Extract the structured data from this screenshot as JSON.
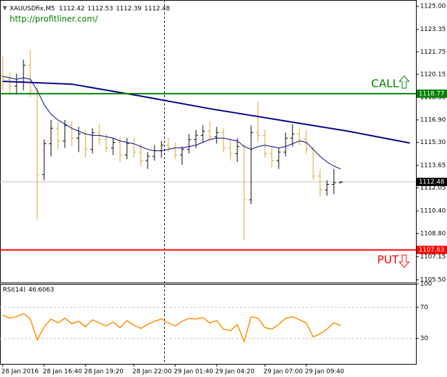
{
  "chart_data": {
    "type": "ohlc",
    "symbol": "XAUUSDfix,M5",
    "header_ohlc": [
      1112.42,
      1112.53,
      1112.39,
      1112.48
    ],
    "watermark": "http://profitliner.com/",
    "up_color": "#000000",
    "down_color": "#daa520",
    "ohlc": [
      [
        1120.0,
        1121.4,
        1119.0,
        1119.8
      ],
      [
        1119.8,
        1120.3,
        1118.8,
        1119.3
      ],
      [
        1119.3,
        1120.2,
        1118.7,
        1119.6
      ],
      [
        1119.6,
        1121.2,
        1119.0,
        1120.8
      ],
      [
        1120.8,
        1121.9,
        1118.5,
        1119.0
      ],
      [
        1119.0,
        1119.2,
        1109.8,
        1113.0
      ],
      [
        1113.0,
        1115.5,
        1112.6,
        1115.2
      ],
      [
        1115.2,
        1116.9,
        1114.3,
        1116.3
      ],
      [
        1116.3,
        1116.8,
        1114.8,
        1115.4
      ],
      [
        1115.4,
        1116.9,
        1114.9,
        1116.5
      ],
      [
        1116.5,
        1116.8,
        1115.0,
        1115.6
      ],
      [
        1115.6,
        1116.4,
        1114.6,
        1115.9
      ],
      [
        1115.9,
        1116.2,
        1114.2,
        1114.8
      ],
      [
        1114.8,
        1116.3,
        1114.5,
        1116.0
      ],
      [
        1116.0,
        1116.6,
        1115.1,
        1115.5
      ],
      [
        1115.5,
        1115.9,
        1114.6,
        1114.9
      ],
      [
        1114.9,
        1115.6,
        1114.4,
        1115.3
      ],
      [
        1115.3,
        1115.7,
        1113.9,
        1114.4
      ],
      [
        1114.4,
        1115.6,
        1114.1,
        1115.2
      ],
      [
        1115.2,
        1115.6,
        1114.2,
        1114.6
      ],
      [
        1114.6,
        1115.2,
        1113.6,
        1114.0
      ],
      [
        1114.0,
        1114.6,
        1113.4,
        1114.3
      ],
      [
        1114.3,
        1115.1,
        1114.0,
        1114.7
      ],
      [
        1114.7,
        1115.4,
        1114.2,
        1115.1
      ],
      [
        1115.1,
        1115.6,
        1114.6,
        1114.9
      ],
      [
        1114.9,
        1115.3,
        1114.1,
        1114.4
      ],
      [
        1114.4,
        1115.0,
        1113.7,
        1114.8
      ],
      [
        1114.8,
        1115.9,
        1114.5,
        1115.5
      ],
      [
        1115.5,
        1116.2,
        1114.9,
        1115.8
      ],
      [
        1115.8,
        1116.5,
        1115.3,
        1116.1
      ],
      [
        1116.1,
        1116.8,
        1115.4,
        1115.7
      ],
      [
        1115.7,
        1116.4,
        1115.2,
        1116.0
      ],
      [
        1116.0,
        1116.3,
        1114.6,
        1114.9
      ],
      [
        1114.9,
        1115.5,
        1114.0,
        1114.5
      ],
      [
        1114.5,
        1115.6,
        1113.9,
        1115.0
      ],
      [
        1115.0,
        1115.2,
        1108.3,
        1111.2
      ],
      [
        1111.2,
        1116.5,
        1110.9,
        1116.0
      ],
      [
        1116.0,
        1118.2,
        1115.3,
        1115.8
      ],
      [
        1115.8,
        1116.2,
        1114.2,
        1114.5
      ],
      [
        1114.5,
        1115.0,
        1113.5,
        1114.0
      ],
      [
        1114.0,
        1114.9,
        1113.4,
        1114.6
      ],
      [
        1114.6,
        1116.0,
        1114.3,
        1115.6
      ],
      [
        1115.6,
        1116.6,
        1115.0,
        1115.9
      ],
      [
        1115.9,
        1116.3,
        1115.1,
        1115.5
      ],
      [
        1115.5,
        1116.2,
        1114.5,
        1114.8
      ],
      [
        1114.8,
        1115.0,
        1112.6,
        1112.9
      ],
      [
        1112.9,
        1113.4,
        1111.4,
        1111.9
      ],
      [
        1111.9,
        1112.6,
        1111.5,
        1112.3
      ],
      [
        1112.3,
        1113.4,
        1111.6,
        1112.42
      ],
      [
        1112.42,
        1112.53,
        1112.39,
        1112.48
      ]
    ],
    "fast_ma": {
      "color": "#00008b",
      "values": [
        1120.0,
        1119.9,
        1119.8,
        1119.9,
        1119.8,
        1119.0,
        1118.0,
        1117.3,
        1116.9,
        1116.6,
        1116.3,
        1116.1,
        1115.9,
        1115.8,
        1115.8,
        1115.7,
        1115.6,
        1115.4,
        1115.3,
        1115.2,
        1115.0,
        1114.8,
        1114.7,
        1114.7,
        1114.8,
        1114.9,
        1114.9,
        1115.0,
        1115.1,
        1115.3,
        1115.5,
        1115.6,
        1115.6,
        1115.5,
        1115.4,
        1115.0,
        1114.8,
        1115.0,
        1115.1,
        1115.0,
        1114.9,
        1115.0,
        1115.2,
        1115.4,
        1115.3,
        1114.8,
        1114.3,
        1113.9,
        1113.6,
        1113.4
      ]
    },
    "slow_ma": {
      "color": "#00008b",
      "x": [
        0,
        10,
        20,
        30,
        40,
        50,
        59
      ],
      "values": [
        1119.65,
        1119.45,
        1118.6,
        1117.7,
        1116.9,
        1116.1,
        1115.25
      ]
    },
    "levels": [
      {
        "name": "CALL",
        "value": 1118.77,
        "color": "#008000"
      },
      {
        "name": "PUT",
        "value": 1107.63,
        "color": "#ff0000"
      }
    ],
    "last_price": 1112.48,
    "xlim": [
      -0.4,
      59.9
    ],
    "ylim": [
      1105.3,
      1125.4
    ],
    "yticks": [
      {
        "value": 1125.0,
        "label": "1125.00"
      },
      {
        "value": 1123.35,
        "label": "1123.35"
      },
      {
        "value": 1121.75,
        "label": "1121.75"
      },
      {
        "value": 1120.15,
        "label": "1120.15"
      },
      {
        "value": 1118.5,
        "label": "1118.50"
      },
      {
        "value": 1116.9,
        "label": "1116.90"
      },
      {
        "value": 1115.3,
        "label": "1115.30"
      },
      {
        "value": 1113.65,
        "label": "1113.65"
      },
      {
        "value": 1112.05,
        "label": "1112.05"
      },
      {
        "value": 1110.4,
        "label": "1110.40"
      },
      {
        "value": 1108.8,
        "label": "1108.80"
      },
      {
        "value": 1107.15,
        "label": "1107.15"
      },
      {
        "value": 1105.5,
        "label": "1105.50"
      }
    ],
    "xticks": [
      {
        "value": 0,
        "label": "28 Jan 2016"
      },
      {
        "value": 6,
        "label": "28 Jan 16:40"
      },
      {
        "value": 12,
        "label": "28 Jan 19:20"
      },
      {
        "value": 19,
        "label": "28 Jan 22:00"
      },
      {
        "value": 25,
        "label": "29 Jan 01:40"
      },
      {
        "value": 31,
        "label": "29 Jan 04:20"
      },
      {
        "value": 38,
        "label": "29 Jan 07:00"
      },
      {
        "value": 44,
        "label": "29 Jan 09:40"
      }
    ],
    "rsi": {
      "label": "RSI(14)",
      "value": 46.6063,
      "color": "#ff8c00",
      "ylim": [
        0,
        100
      ],
      "yticks": [
        30,
        70,
        100
      ],
      "values": [
        60,
        56,
        58,
        62,
        55,
        28,
        45,
        55,
        50,
        56,
        49,
        52,
        45,
        54,
        50,
        46,
        51,
        44,
        53,
        47,
        43,
        48,
        52,
        55,
        50,
        46,
        52,
        56,
        55,
        57,
        50,
        53,
        42,
        40,
        48,
        26,
        58,
        56,
        44,
        42,
        48,
        56,
        58,
        54,
        50,
        32,
        36,
        42,
        50,
        46.6063
      ]
    }
  }
}
